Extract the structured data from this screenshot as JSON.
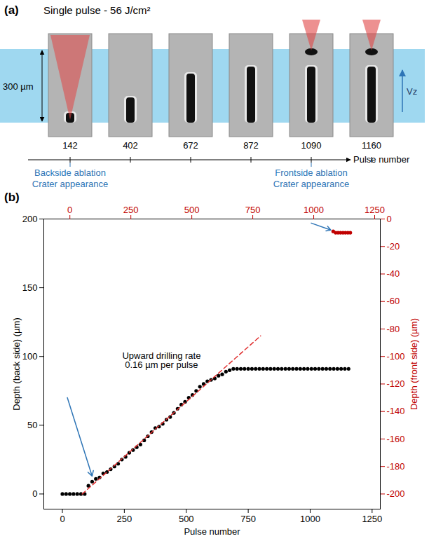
{
  "diagram": {
    "label": "(a)",
    "title": "Single pulse - 56 J/cm²",
    "thickness_label": "300 µm",
    "velocity_label": "Vz",
    "axis_label": "Pulse number",
    "frames": [
      142,
      402,
      672,
      872,
      1090,
      1160
    ],
    "events": [
      {
        "lines": [
          "Backside ablation",
          "Crater appearance"
        ],
        "frame": 142
      },
      {
        "lines": [
          "Frontside ablation",
          "Crater appearance"
        ],
        "frame": 1090
      }
    ]
  },
  "chart_data": {
    "type": "scatter",
    "panel_label": "(b)",
    "xlabel": "Pulse number",
    "ylabel": "Depth (back side) (µm)",
    "y2label": "Depth (front side) (µm)",
    "xlim": [
      -75,
      1283
    ],
    "xticks": [
      0,
      250,
      500,
      750,
      1000,
      1250
    ],
    "x2lim": [
      -107,
      1273
    ],
    "x2ticks": [
      0,
      250,
      500,
      750,
      1000,
      1250
    ],
    "ylim": [
      -11,
      200
    ],
    "yticks": [
      0,
      50,
      100,
      150,
      200
    ],
    "y2lim": [
      -211,
      0
    ],
    "y2ticks": [
      0,
      -20,
      -40,
      -60,
      -80,
      -100,
      -120,
      -140,
      -160,
      -180,
      -200
    ],
    "annotation": {
      "lines": [
        "Upward drilling rate",
        "0.16 µm per pulse"
      ]
    },
    "series": [
      {
        "type": "scatter",
        "color": "#000000",
        "marker": "circle",
        "x": [
          0,
          15,
          30,
          45,
          60,
          75,
          90,
          105,
          120,
          135,
          150,
          165,
          180,
          195,
          210,
          225,
          240,
          255,
          270,
          285,
          300,
          315,
          330,
          345,
          360,
          375,
          390,
          405,
          420,
          435,
          450,
          465,
          480,
          495,
          510,
          525,
          540,
          555,
          570,
          585,
          600,
          615,
          630,
          645,
          660,
          675,
          690,
          705,
          720,
          735,
          750,
          765,
          780,
          795,
          810,
          825,
          840,
          855,
          870,
          885,
          900,
          915,
          930,
          945,
          960,
          975,
          990,
          1005,
          1020,
          1035,
          1050,
          1065,
          1080,
          1095,
          1110,
          1125,
          1140,
          1155
        ],
        "values": [
          0,
          0,
          0,
          0,
          0,
          0,
          0,
          6,
          9,
          11,
          12,
          15,
          16,
          18,
          20,
          22,
          25,
          27,
          30,
          32,
          34,
          36,
          39,
          42,
          45,
          48,
          49,
          51,
          54,
          56,
          59,
          62,
          65,
          67,
          70,
          72,
          75,
          78,
          80,
          82,
          83,
          84,
          86,
          87,
          89,
          90,
          91,
          91,
          91,
          91,
          91,
          91,
          91,
          91,
          91,
          91,
          91,
          91,
          91,
          91,
          91,
          91,
          91,
          91,
          91,
          91,
          91,
          91,
          91,
          91,
          91,
          91,
          91,
          91,
          91,
          91,
          91,
          91
        ]
      },
      {
        "type": "line",
        "color": "#e03030",
        "line_style": "dashed",
        "x": [
          80,
          800
        ],
        "values": [
          0,
          115
        ]
      },
      {
        "type": "scatter",
        "color": "#c00000",
        "marker": "circle",
        "axis": "y2",
        "x": [
          1080,
          1090,
          1100,
          1110,
          1120,
          1130,
          1140,
          1150
        ],
        "values": [
          -9,
          -10,
          -10,
          -10,
          -10,
          -10,
          -10,
          -10
        ]
      }
    ]
  }
}
